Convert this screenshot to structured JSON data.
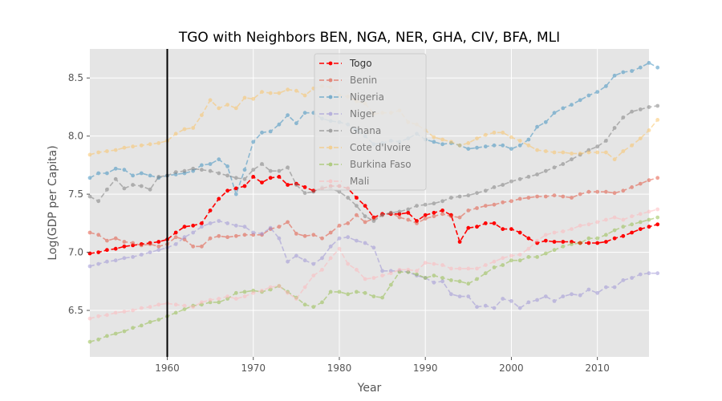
{
  "chart_data": {
    "type": "line",
    "title": "TGO with Neighbors BEN, NGA, NER, GHA, CIV, BFA, MLI",
    "xlabel": "Year",
    "ylabel": "Log(GDP per Capita)",
    "xlim": [
      1951,
      2016
    ],
    "ylim": [
      6.1,
      8.75
    ],
    "xticks": [
      1960,
      1970,
      1980,
      1990,
      2000,
      2010
    ],
    "yticks": [
      6.5,
      7.0,
      7.5,
      8.0,
      8.5
    ],
    "ytick_labels": [
      "6.5",
      "7.0",
      "7.5",
      "8.0",
      "8.5"
    ],
    "grid": true,
    "legend_position": "upper-center",
    "vline_x": 1960,
    "start_year": 1951,
    "series": [
      {
        "name": "Togo",
        "color": "#ff0000",
        "alpha": 1.0,
        "values": [
          6.99,
          7.0,
          7.02,
          7.03,
          7.05,
          7.06,
          7.07,
          7.08,
          7.09,
          7.11,
          7.17,
          7.22,
          7.23,
          7.25,
          7.36,
          7.46,
          7.53,
          7.55,
          7.57,
          7.65,
          7.6,
          7.64,
          7.65,
          7.58,
          7.59,
          7.56,
          7.53,
          7.55,
          7.57,
          7.57,
          7.55,
          7.47,
          7.4,
          7.3,
          7.33,
          7.33,
          7.33,
          7.34,
          7.27,
          7.32,
          7.34,
          7.36,
          7.32,
          7.09,
          7.21,
          7.22,
          7.25,
          7.25,
          7.2,
          7.2,
          7.17,
          7.12,
          7.08,
          7.1,
          7.09,
          7.09,
          7.09,
          7.08,
          7.08,
          7.08,
          7.09,
          7.12,
          7.14,
          7.17,
          7.2,
          7.22,
          7.24
        ]
      },
      {
        "name": "Benin",
        "color": "#e24a33",
        "alpha": 0.5,
        "values": [
          7.17,
          7.15,
          7.1,
          7.12,
          7.09,
          7.08,
          7.06,
          7.07,
          7.05,
          7.07,
          7.13,
          7.11,
          7.05,
          7.05,
          7.12,
          7.14,
          7.13,
          7.14,
          7.15,
          7.15,
          7.15,
          7.2,
          7.22,
          7.26,
          7.16,
          7.14,
          7.15,
          7.12,
          7.17,
          7.23,
          7.25,
          7.32,
          7.26,
          7.29,
          7.32,
          7.34,
          7.3,
          7.28,
          7.25,
          7.29,
          7.31,
          7.33,
          7.31,
          7.3,
          7.36,
          7.38,
          7.4,
          7.41,
          7.43,
          7.44,
          7.46,
          7.47,
          7.48,
          7.48,
          7.49,
          7.48,
          7.47,
          7.5,
          7.52,
          7.52,
          7.52,
          7.51,
          7.53,
          7.56,
          7.59,
          7.62,
          7.64
        ]
      },
      {
        "name": "Nigeria",
        "color": "#348abd",
        "alpha": 0.5,
        "values": [
          7.64,
          7.68,
          7.68,
          7.72,
          7.71,
          7.66,
          7.68,
          7.66,
          7.64,
          7.66,
          7.67,
          7.68,
          7.7,
          7.75,
          7.76,
          7.8,
          7.74,
          7.5,
          7.71,
          7.95,
          8.03,
          8.04,
          8.1,
          8.18,
          8.11,
          8.2,
          8.2,
          8.15,
          8.13,
          8.12,
          8.1,
          8.05,
          8.0,
          7.93,
          7.94,
          7.96,
          7.95,
          7.98,
          8.02,
          7.97,
          7.95,
          7.93,
          7.94,
          7.92,
          7.89,
          7.9,
          7.91,
          7.92,
          7.92,
          7.89,
          7.92,
          7.97,
          8.08,
          8.12,
          8.2,
          8.24,
          8.27,
          8.31,
          8.35,
          8.38,
          8.43,
          8.52,
          8.55,
          8.56,
          8.59,
          8.63,
          8.59
        ]
      },
      {
        "name": "Niger",
        "color": "#988ed5",
        "alpha": 0.5,
        "values": [
          6.88,
          6.9,
          6.92,
          6.93,
          6.95,
          6.96,
          6.98,
          7.0,
          7.02,
          7.04,
          7.07,
          7.13,
          7.17,
          7.22,
          7.25,
          7.27,
          7.25,
          7.23,
          7.22,
          7.17,
          7.16,
          7.21,
          7.12,
          6.92,
          6.97,
          6.93,
          6.9,
          6.95,
          7.05,
          7.12,
          7.13,
          7.1,
          7.08,
          7.04,
          6.84,
          6.84,
          6.84,
          6.83,
          6.8,
          6.78,
          6.74,
          6.75,
          6.64,
          6.62,
          6.62,
          6.53,
          6.54,
          6.52,
          6.6,
          6.58,
          6.52,
          6.57,
          6.59,
          6.62,
          6.58,
          6.62,
          6.64,
          6.63,
          6.68,
          6.65,
          6.7,
          6.7,
          6.76,
          6.78,
          6.81,
          6.82,
          6.82
        ]
      },
      {
        "name": "Ghana",
        "color": "#777777",
        "alpha": 0.5,
        "values": [
          7.48,
          7.44,
          7.54,
          7.63,
          7.55,
          7.58,
          7.57,
          7.54,
          7.65,
          7.66,
          7.69,
          7.7,
          7.72,
          7.71,
          7.7,
          7.68,
          7.66,
          7.64,
          7.63,
          7.71,
          7.76,
          7.7,
          7.7,
          7.73,
          7.58,
          7.51,
          7.52,
          7.56,
          7.55,
          7.52,
          7.47,
          7.4,
          7.31,
          7.27,
          7.32,
          7.34,
          7.35,
          7.37,
          7.4,
          7.41,
          7.42,
          7.44,
          7.47,
          7.48,
          7.49,
          7.51,
          7.53,
          7.56,
          7.58,
          7.61,
          7.63,
          7.65,
          7.67,
          7.7,
          7.73,
          7.76,
          7.8,
          7.84,
          7.88,
          7.91,
          7.96,
          8.07,
          8.16,
          8.21,
          8.23,
          8.25,
          8.26
        ]
      },
      {
        "name": "Cote d'Ivoire",
        "color": "#fbc15e",
        "alpha": 0.5,
        "values": [
          7.84,
          7.86,
          7.87,
          7.88,
          7.9,
          7.91,
          7.92,
          7.93,
          7.94,
          7.96,
          8.02,
          8.06,
          8.07,
          8.18,
          8.31,
          8.24,
          8.27,
          8.24,
          8.33,
          8.32,
          8.38,
          8.37,
          8.37,
          8.4,
          8.39,
          8.35,
          8.41,
          8.43,
          8.42,
          8.35,
          8.34,
          8.3,
          8.28,
          8.19,
          8.2,
          8.2,
          8.22,
          8.12,
          8.1,
          8.05,
          7.99,
          7.97,
          7.95,
          7.92,
          7.94,
          7.98,
          8.01,
          8.03,
          8.03,
          7.99,
          7.96,
          7.92,
          7.88,
          7.87,
          7.86,
          7.86,
          7.85,
          7.85,
          7.86,
          7.86,
          7.86,
          7.8,
          7.87,
          7.92,
          7.98,
          8.05,
          8.14
        ]
      },
      {
        "name": "Burkina Faso",
        "color": "#8eba42",
        "alpha": 0.5,
        "values": [
          6.23,
          6.25,
          6.28,
          6.3,
          6.32,
          6.35,
          6.37,
          6.4,
          6.42,
          6.45,
          6.48,
          6.51,
          6.54,
          6.55,
          6.57,
          6.57,
          6.6,
          6.65,
          6.66,
          6.67,
          6.66,
          6.68,
          6.71,
          6.66,
          6.61,
          6.55,
          6.53,
          6.57,
          6.66,
          6.66,
          6.64,
          6.66,
          6.65,
          6.62,
          6.61,
          6.72,
          6.83,
          6.83,
          6.81,
          6.78,
          6.8,
          6.78,
          6.76,
          6.75,
          6.73,
          6.77,
          6.82,
          6.87,
          6.89,
          6.93,
          6.93,
          6.96,
          6.96,
          6.99,
          7.02,
          7.05,
          7.07,
          7.08,
          7.12,
          7.12,
          7.15,
          7.19,
          7.22,
          7.24,
          7.26,
          7.28,
          7.3
        ]
      },
      {
        "name": "Mali",
        "color": "#ffb5b8",
        "alpha": 0.5,
        "values": [
          6.43,
          6.45,
          6.46,
          6.48,
          6.49,
          6.5,
          6.52,
          6.53,
          6.55,
          6.56,
          6.55,
          6.54,
          6.53,
          6.57,
          6.59,
          6.6,
          6.62,
          6.6,
          6.62,
          6.65,
          6.67,
          6.7,
          6.71,
          6.65,
          6.6,
          6.7,
          6.8,
          6.85,
          6.95,
          7.03,
          6.9,
          6.85,
          6.77,
          6.78,
          6.8,
          6.82,
          6.85,
          6.85,
          6.84,
          6.91,
          6.9,
          6.89,
          6.86,
          6.86,
          6.86,
          6.86,
          6.89,
          6.92,
          6.95,
          6.97,
          6.98,
          7.03,
          7.1,
          7.15,
          7.17,
          7.18,
          7.2,
          7.23,
          7.24,
          7.26,
          7.28,
          7.3,
          7.28,
          7.31,
          7.33,
          7.35,
          7.37
        ]
      }
    ]
  }
}
